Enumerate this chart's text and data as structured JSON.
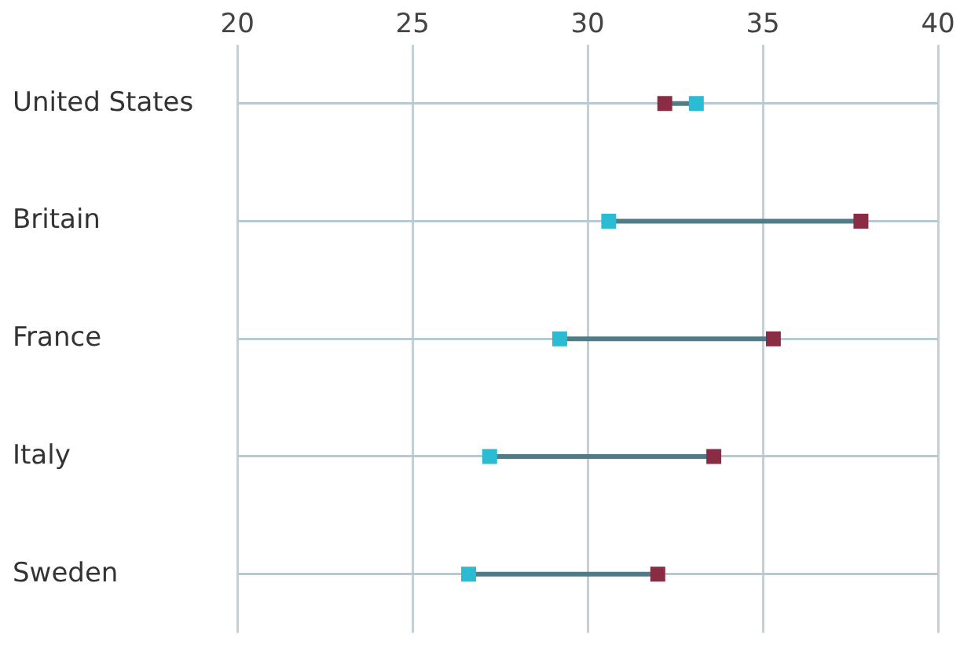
{
  "chart_data": {
    "type": "scatter",
    "orientation": "horizontal",
    "categories": [
      "United States",
      "Britain",
      "France",
      "Italy",
      "Sweden"
    ],
    "series": [
      {
        "color": "#8b2c45",
        "values": [
          32.2,
          37.8,
          35.3,
          33.6,
          32.0
        ]
      },
      {
        "color": "#2bbcd4",
        "values": [
          33.1,
          30.6,
          29.2,
          27.2,
          26.6
        ]
      }
    ],
    "marker": "square",
    "xlim": [
      20,
      40
    ],
    "xticks": [
      20,
      25,
      30,
      35,
      40
    ],
    "grid": true
  }
}
